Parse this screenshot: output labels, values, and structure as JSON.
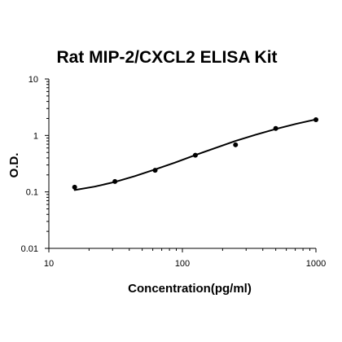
{
  "chart_data": {
    "type": "scatter",
    "title": "Rat MIP-2/CXCL2 ELISA Kit",
    "xlabel": "Concentration(pg/ml)",
    "ylabel": "O.D.",
    "x_scale": "log",
    "y_scale": "log",
    "xlim": [
      10,
      1000
    ],
    "ylim": [
      0.01,
      10
    ],
    "x_ticks": [
      10,
      100,
      1000
    ],
    "x_tick_labels": [
      "10",
      "100",
      "1000"
    ],
    "y_ticks": [
      0.01,
      0.1,
      1,
      10
    ],
    "y_tick_labels": [
      "0.01",
      "0.1",
      "1",
      "10"
    ],
    "grid": false,
    "points": {
      "x": [
        15.6,
        31.25,
        62.5,
        125,
        250,
        500,
        1000
      ],
      "y": [
        0.121,
        0.153,
        0.241,
        0.447,
        0.683,
        1.33,
        1.9
      ]
    },
    "fit_curve": {
      "x": [
        15.6,
        22,
        31.25,
        44,
        62.5,
        88,
        125,
        177,
        250,
        354,
        500,
        707,
        1000
      ],
      "y": [
        0.108,
        0.124,
        0.15,
        0.19,
        0.25,
        0.33,
        0.45,
        0.6,
        0.8,
        1.03,
        1.3,
        1.6,
        1.92
      ]
    },
    "colors": {
      "points": "#000000",
      "curve": "#000000",
      "axes": "#000000"
    }
  }
}
